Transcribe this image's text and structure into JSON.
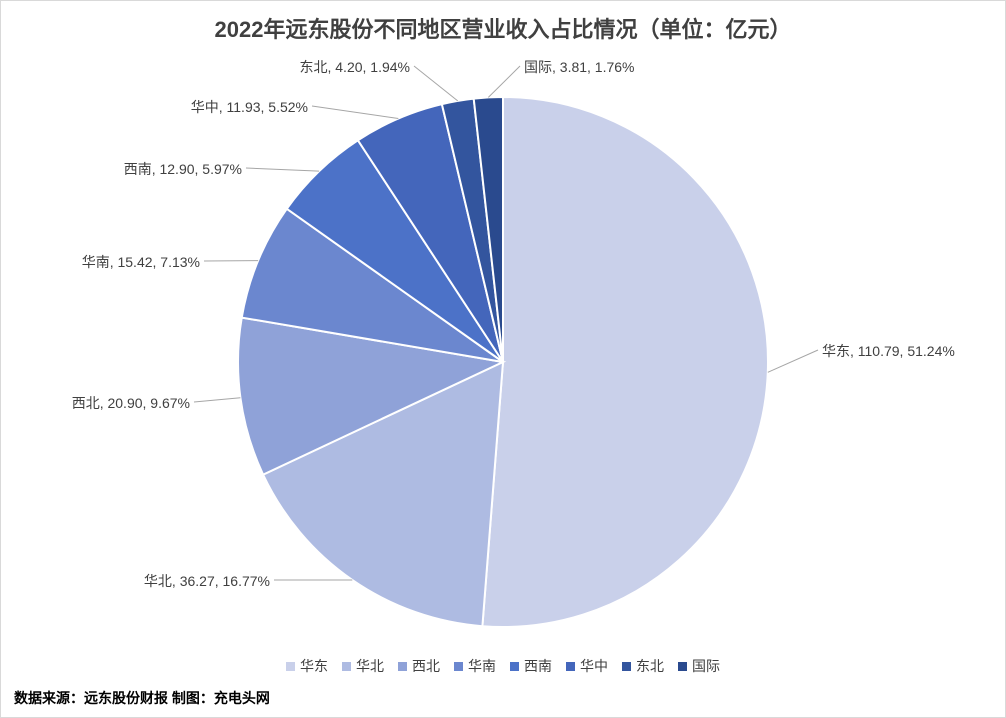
{
  "chart_data": {
    "type": "pie",
    "title": "2022年远东股份不同地区营业收入占比情况（单位：亿元）",
    "categories": [
      "华东",
      "华北",
      "西北",
      "华南",
      "西南",
      "华中",
      "东北",
      "国际"
    ],
    "values": [
      110.79,
      36.27,
      20.9,
      15.42,
      12.9,
      11.93,
      4.2,
      3.81
    ],
    "percentages": [
      "51.24%",
      "16.77%",
      "9.67%",
      "7.13%",
      "5.97%",
      "5.52%",
      "1.94%",
      "1.76%"
    ],
    "value_labels": [
      "110.79",
      "36.27",
      "20.90",
      "15.42",
      "12.90",
      "11.93",
      "4.20",
      "3.81"
    ],
    "colors": [
      "#c9d0ea",
      "#aebbe2",
      "#8fa2d8",
      "#6b87cf",
      "#4c72c8",
      "#4466bb",
      "#33559e",
      "#2a4a8e"
    ],
    "legend_position": "bottom"
  },
  "footer": "数据来源：远东股份财报  制图：充电头网"
}
